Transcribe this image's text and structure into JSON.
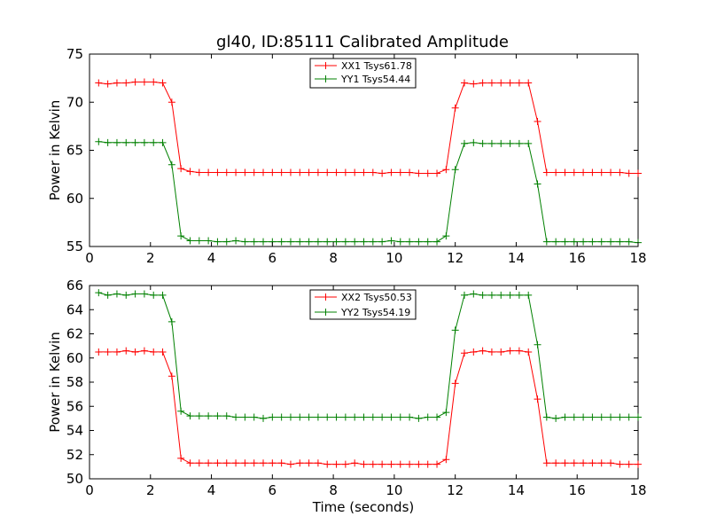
{
  "figure": {
    "title": "gl40, ID:85111 Calibrated Amplitude"
  },
  "chart_data": [
    {
      "type": "line",
      "xlabel": "",
      "ylabel": "Power in Kelvin",
      "xlim": [
        0,
        18
      ],
      "ylim": [
        55,
        75
      ],
      "xticks": [
        "0",
        "2",
        "4",
        "6",
        "8",
        "10",
        "12",
        "14",
        "16",
        "18"
      ],
      "yticks": [
        "55",
        "60",
        "65",
        "70",
        "75"
      ],
      "legend_position": "top-center",
      "grid": false,
      "x": [
        0.3,
        0.6,
        0.9,
        1.2,
        1.5,
        1.8,
        2.1,
        2.4,
        2.7,
        3.0,
        3.3,
        3.6,
        3.9,
        4.2,
        4.5,
        4.8,
        5.1,
        5.4,
        5.7,
        6.0,
        6.3,
        6.6,
        6.9,
        7.2,
        7.5,
        7.8,
        8.1,
        8.4,
        8.7,
        9.0,
        9.3,
        9.6,
        9.9,
        10.2,
        10.5,
        10.8,
        11.1,
        11.4,
        11.7,
        12.0,
        12.3,
        12.6,
        12.9,
        13.2,
        13.5,
        13.8,
        14.1,
        14.4,
        14.7,
        15.0,
        15.3,
        15.6,
        15.9,
        16.2,
        16.5,
        16.8,
        17.1,
        17.4,
        17.7,
        18.0
      ],
      "series": [
        {
          "name": "XX1 Tsys61.78",
          "color": "#ff0000",
          "values": [
            72.0,
            71.9,
            72.0,
            72.0,
            72.1,
            72.1,
            72.1,
            72.0,
            70.0,
            63.1,
            62.8,
            62.7,
            62.7,
            62.7,
            62.7,
            62.7,
            62.7,
            62.7,
            62.7,
            62.7,
            62.7,
            62.7,
            62.7,
            62.7,
            62.7,
            62.7,
            62.7,
            62.7,
            62.7,
            62.7,
            62.7,
            62.6,
            62.7,
            62.7,
            62.7,
            62.6,
            62.6,
            62.6,
            63.0,
            69.4,
            72.0,
            71.9,
            72.0,
            72.0,
            72.0,
            72.0,
            72.0,
            72.0,
            68.0,
            62.7,
            62.7,
            62.7,
            62.7,
            62.7,
            62.7,
            62.7,
            62.7,
            62.7,
            62.6,
            62.6
          ]
        },
        {
          "name": "YY1 Tsys54.44",
          "color": "#008000",
          "values": [
            65.9,
            65.8,
            65.8,
            65.8,
            65.8,
            65.8,
            65.8,
            65.8,
            63.5,
            56.1,
            55.6,
            55.6,
            55.6,
            55.5,
            55.5,
            55.6,
            55.5,
            55.5,
            55.5,
            55.5,
            55.5,
            55.5,
            55.5,
            55.5,
            55.5,
            55.5,
            55.5,
            55.5,
            55.5,
            55.5,
            55.5,
            55.5,
            55.6,
            55.5,
            55.5,
            55.5,
            55.5,
            55.5,
            56.1,
            63.0,
            65.7,
            65.8,
            65.7,
            65.7,
            65.7,
            65.7,
            65.7,
            65.7,
            61.5,
            55.5,
            55.5,
            55.5,
            55.5,
            55.5,
            55.5,
            55.5,
            55.5,
            55.5,
            55.5,
            55.4
          ]
        }
      ]
    },
    {
      "type": "line",
      "xlabel": "Time (seconds)",
      "ylabel": "Power in Kelvin",
      "xlim": [
        0,
        18
      ],
      "ylim": [
        50,
        66
      ],
      "xticks": [
        "0",
        "2",
        "4",
        "6",
        "8",
        "10",
        "12",
        "14",
        "16",
        "18"
      ],
      "yticks": [
        "50",
        "52",
        "54",
        "56",
        "58",
        "60",
        "62",
        "64",
        "66"
      ],
      "legend_position": "top-center",
      "grid": false,
      "x": [
        0.3,
        0.6,
        0.9,
        1.2,
        1.5,
        1.8,
        2.1,
        2.4,
        2.7,
        3.0,
        3.3,
        3.6,
        3.9,
        4.2,
        4.5,
        4.8,
        5.1,
        5.4,
        5.7,
        6.0,
        6.3,
        6.6,
        6.9,
        7.2,
        7.5,
        7.8,
        8.1,
        8.4,
        8.7,
        9.0,
        9.3,
        9.6,
        9.9,
        10.2,
        10.5,
        10.8,
        11.1,
        11.4,
        11.7,
        12.0,
        12.3,
        12.6,
        12.9,
        13.2,
        13.5,
        13.8,
        14.1,
        14.4,
        14.7,
        15.0,
        15.3,
        15.6,
        15.9,
        16.2,
        16.5,
        16.8,
        17.1,
        17.4,
        17.7,
        18.0
      ],
      "series": [
        {
          "name": "XX2 Tsys50.53",
          "color": "#ff0000",
          "values": [
            60.5,
            60.5,
            60.5,
            60.6,
            60.5,
            60.6,
            60.5,
            60.5,
            58.5,
            51.7,
            51.3,
            51.3,
            51.3,
            51.3,
            51.3,
            51.3,
            51.3,
            51.3,
            51.3,
            51.3,
            51.3,
            51.2,
            51.3,
            51.3,
            51.3,
            51.2,
            51.2,
            51.2,
            51.3,
            51.2,
            51.2,
            51.2,
            51.2,
            51.2,
            51.2,
            51.2,
            51.2,
            51.2,
            51.6,
            57.9,
            60.4,
            60.5,
            60.6,
            60.5,
            60.5,
            60.6,
            60.6,
            60.5,
            56.6,
            51.3,
            51.3,
            51.3,
            51.3,
            51.3,
            51.3,
            51.3,
            51.3,
            51.2,
            51.2,
            51.2
          ]
        },
        {
          "name": "YY2 Tsys54.19",
          "color": "#008000",
          "values": [
            65.4,
            65.2,
            65.3,
            65.2,
            65.3,
            65.3,
            65.2,
            65.2,
            63.0,
            55.6,
            55.2,
            55.2,
            55.2,
            55.2,
            55.2,
            55.1,
            55.1,
            55.1,
            55.0,
            55.1,
            55.1,
            55.1,
            55.1,
            55.1,
            55.1,
            55.1,
            55.1,
            55.1,
            55.1,
            55.1,
            55.1,
            55.1,
            55.1,
            55.1,
            55.1,
            55.0,
            55.1,
            55.1,
            55.5,
            62.3,
            65.2,
            65.3,
            65.2,
            65.2,
            65.2,
            65.2,
            65.2,
            65.2,
            61.1,
            55.1,
            55.0,
            55.1,
            55.1,
            55.1,
            55.1,
            55.1,
            55.1,
            55.1,
            55.1,
            55.1
          ]
        }
      ]
    }
  ]
}
